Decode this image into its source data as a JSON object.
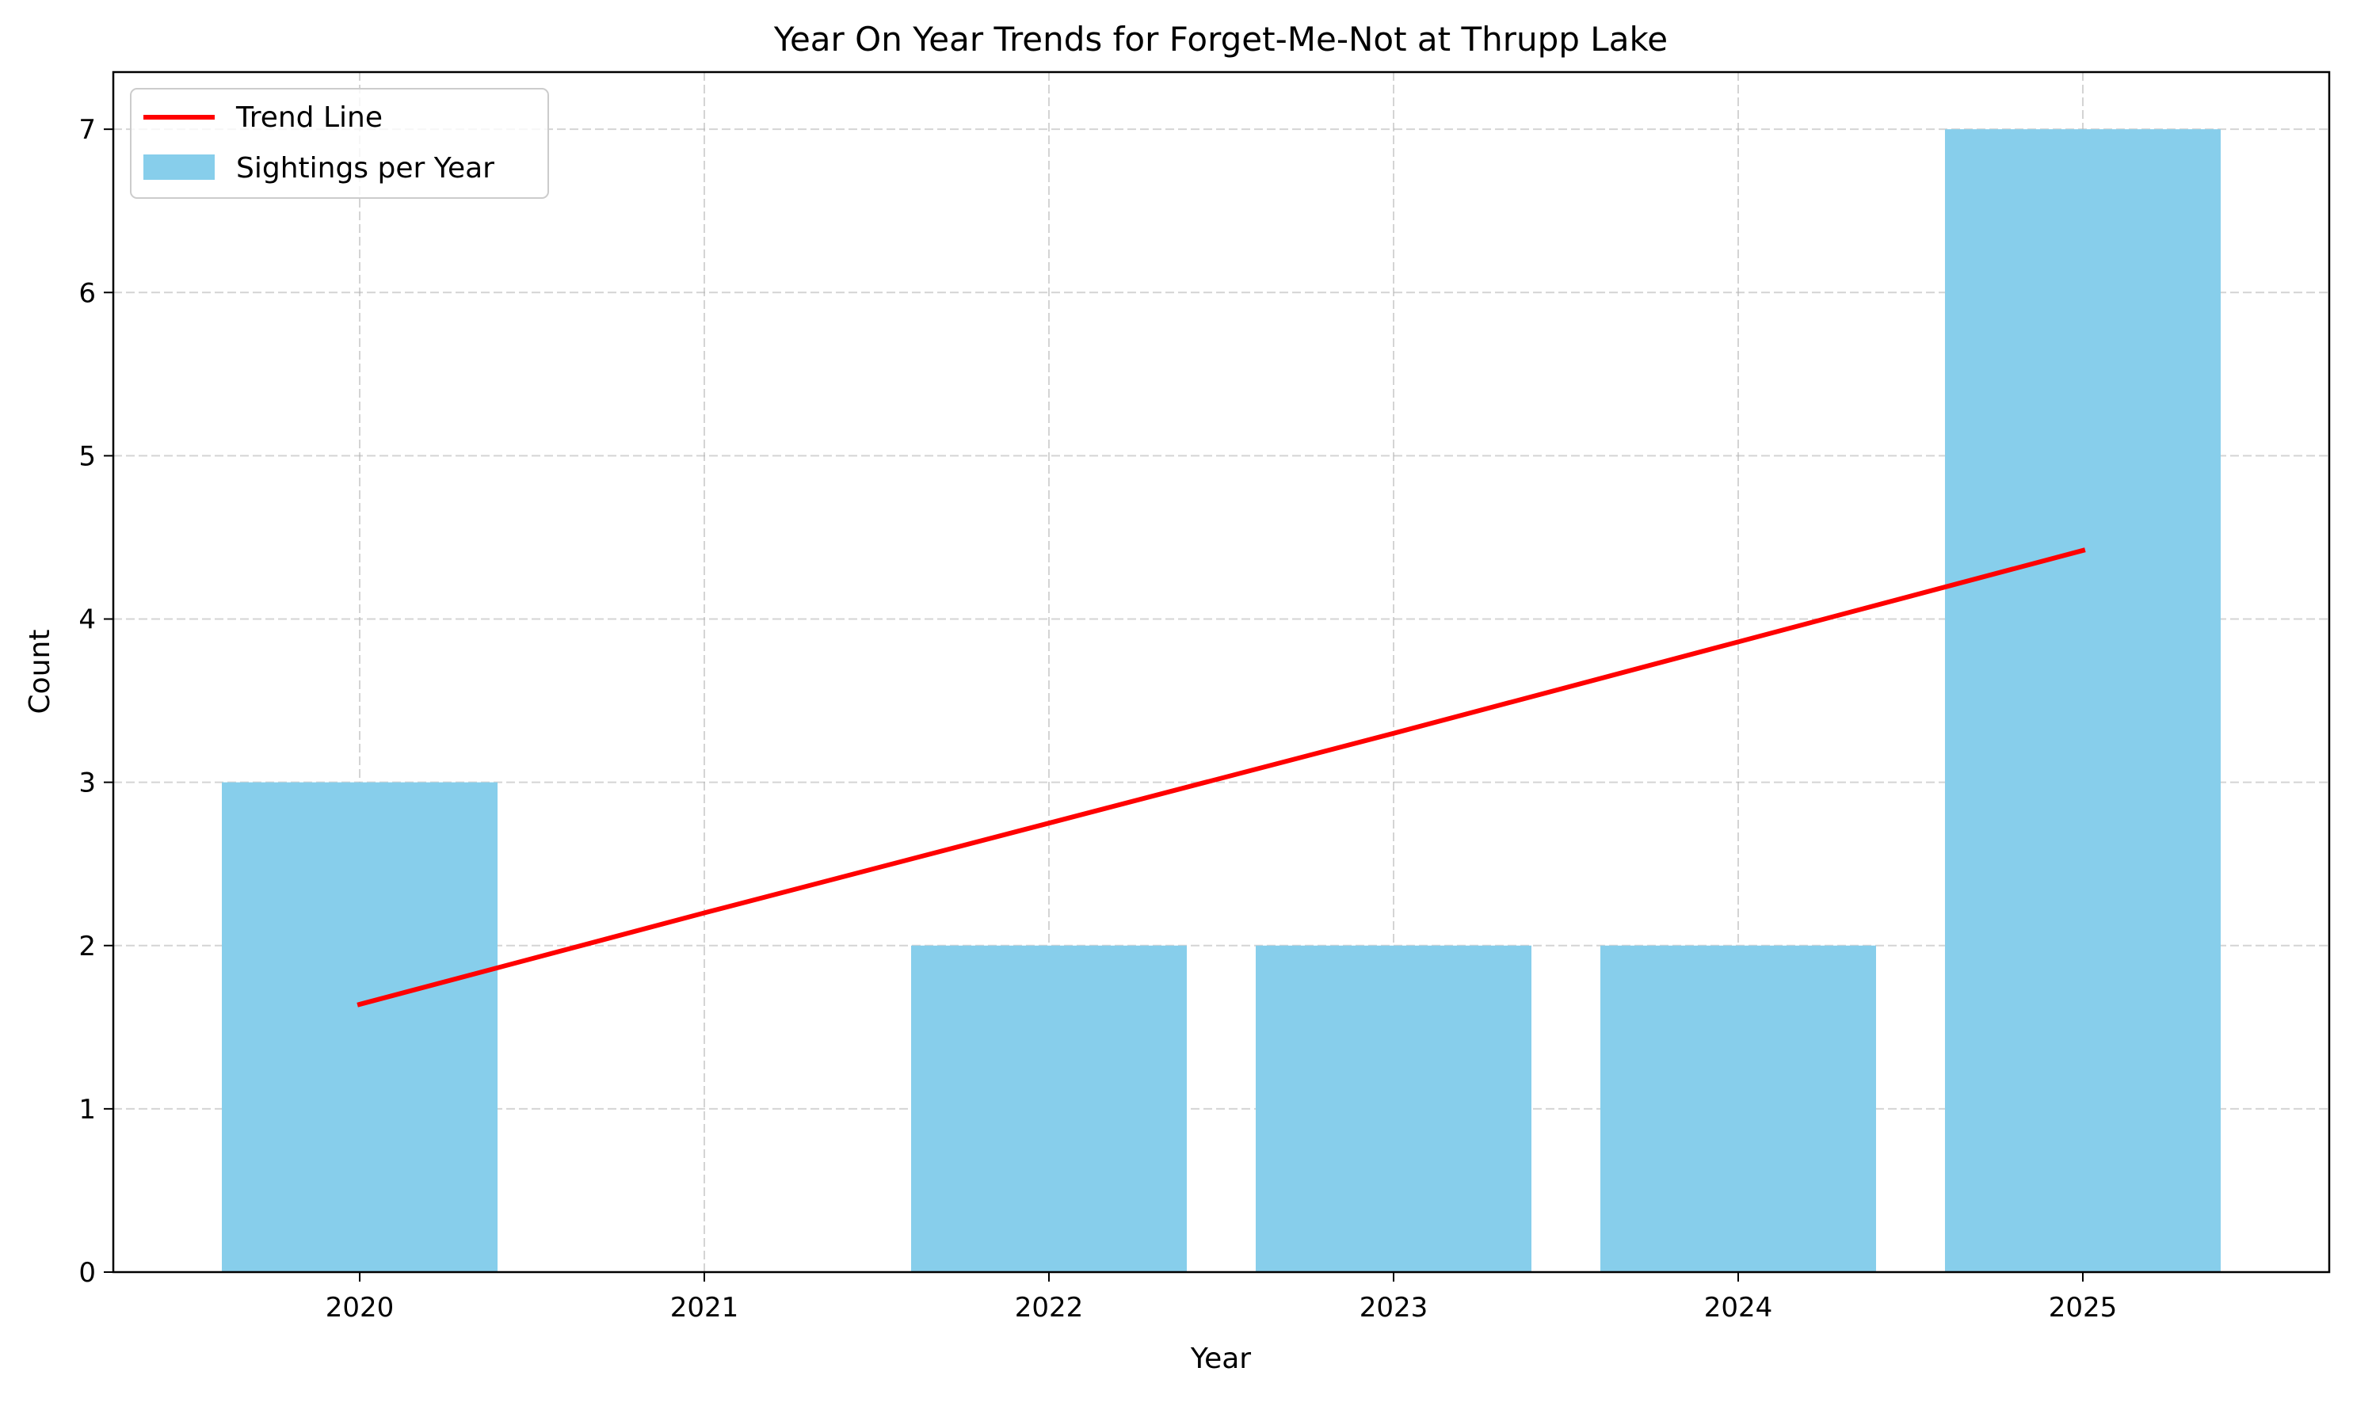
{
  "chart_data": {
    "type": "bar",
    "title": "Year On Year Trends for Forget-Me-Not at Thrupp Lake",
    "xlabel": "Year",
    "ylabel": "Count",
    "categories": [
      "2020",
      "2021",
      "2022",
      "2023",
      "2024",
      "2025"
    ],
    "series": [
      {
        "name": "Sightings per Year",
        "type": "bar",
        "color": "#87ceeb",
        "values": [
          3,
          0,
          2,
          2,
          2,
          7
        ]
      },
      {
        "name": "Trend Line",
        "type": "line",
        "color": "#ff0000",
        "values": [
          1.64,
          2.2,
          2.75,
          3.3,
          3.86,
          4.42
        ]
      }
    ],
    "ylim": [
      0,
      7.35
    ],
    "yticks": [
      0,
      1,
      2,
      3,
      4,
      5,
      6,
      7
    ],
    "grid": true,
    "legend_position": "top-left"
  }
}
